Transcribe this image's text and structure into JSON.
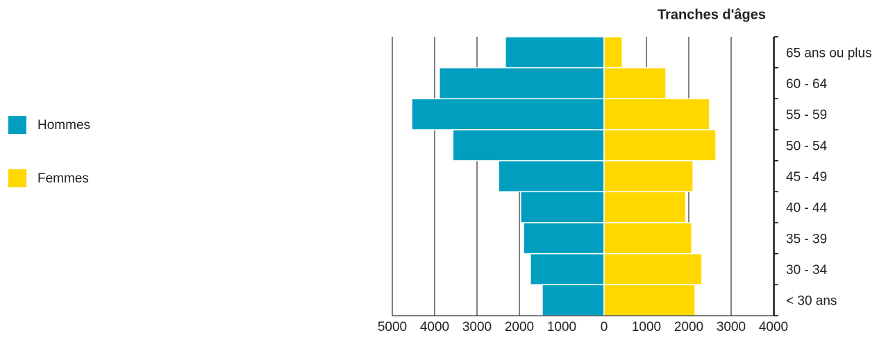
{
  "chart_data": {
    "type": "pyramid",
    "y_axis_label": "Tranches d'âges",
    "categories": [
      "65 ans ou plus",
      "60 - 64",
      "55 - 59",
      "50 - 54",
      "45 - 49",
      "40 - 44",
      "35 - 39",
      "30 - 34",
      "< 30 ans"
    ],
    "series": [
      {
        "name": "Hommes",
        "color": "#009fc0",
        "values": [
          -2330,
          -3890,
          -4540,
          -3570,
          -2490,
          -1970,
          -1900,
          -1740,
          -1460
        ]
      },
      {
        "name": "Femmes",
        "color": "#ffd800",
        "values": [
          430,
          1460,
          2490,
          2640,
          2100,
          1930,
          2070,
          2310,
          2150
        ]
      }
    ],
    "xlim": [
      -5000,
      4000
    ],
    "xticks": [
      {
        "value": -5000,
        "label": "5000"
      },
      {
        "value": -4000,
        "label": "4000"
      },
      {
        "value": -3000,
        "label": "3000"
      },
      {
        "value": -2000,
        "label": "2000"
      },
      {
        "value": -1000,
        "label": "1000"
      },
      0,
      1000,
      2000,
      3000,
      4000
    ],
    "grid": true,
    "legend": "left"
  }
}
